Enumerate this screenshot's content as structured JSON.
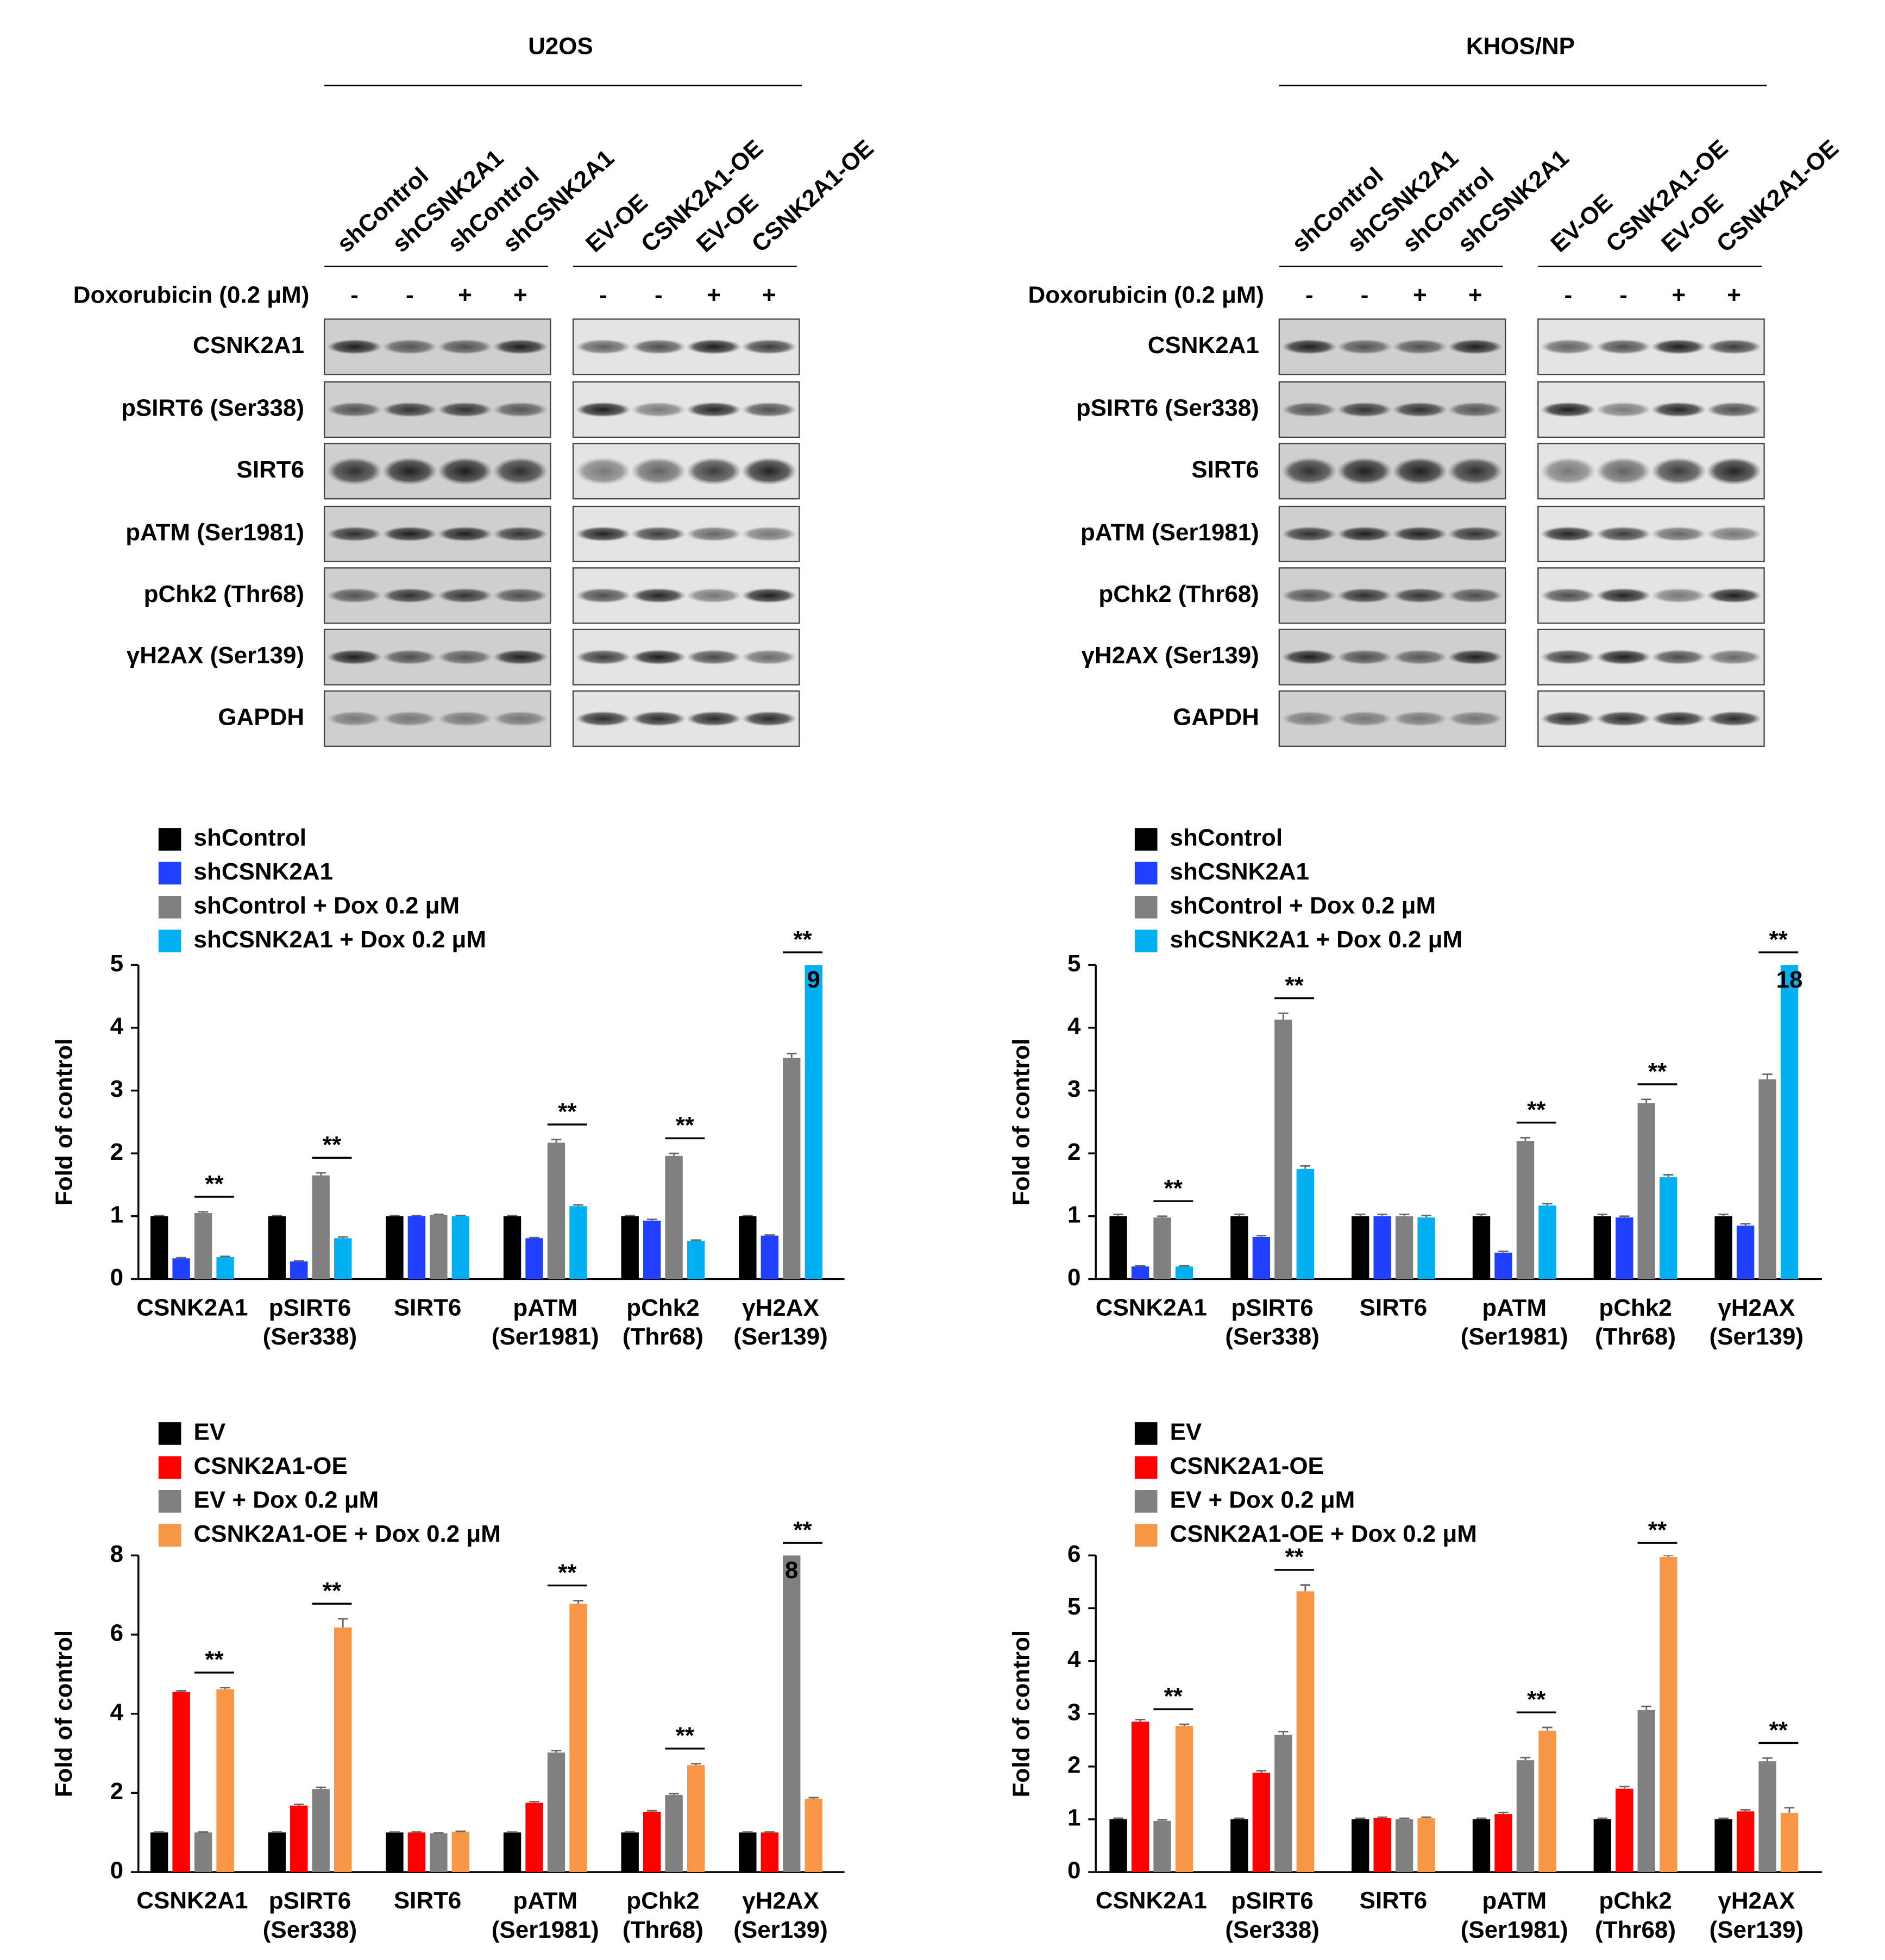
{
  "blots": [
    {
      "title": "U2OS",
      "lanes": [
        "shControl",
        "shCSNK2A1",
        "shControl",
        "shCSNK2A1",
        "EV-OE",
        "CSNK2A1-OE",
        "EV-OE",
        "CSNK2A1-OE"
      ],
      "treatment_label": "Doxorubicin (0.2 μM)",
      "treatment": [
        "-",
        "-",
        "+",
        "+",
        "-",
        "-",
        "+",
        "+"
      ],
      "rows": [
        "CSNK2A1",
        "pSIRT6 (Ser338)",
        "SIRT6",
        "pATM (Ser1981)",
        "pChk2 (Thr68)",
        "γH2AX (Ser139)",
        "GAPDH"
      ]
    },
    {
      "title": "KHOS/NP",
      "lanes": [
        "shControl",
        "shCSNK2A1",
        "shControl",
        "shCSNK2A1",
        "EV-OE",
        "CSNK2A1-OE",
        "EV-OE",
        "CSNK2A1-OE"
      ],
      "treatment_label": "Doxorubicin (0.2 μM)",
      "treatment": [
        "-",
        "-",
        "+",
        "+",
        "-",
        "-",
        "+",
        "+"
      ],
      "rows": [
        "CSNK2A1",
        "pSIRT6 (Ser338)",
        "SIRT6",
        "pATM (Ser1981)",
        "pChk2 (Thr68)",
        "γH2AX (Ser139)",
        "GAPDH"
      ]
    }
  ],
  "chart_data": [
    {
      "type": "bar",
      "ylabel": "Fold of control",
      "categories": [
        "CSNK2A1",
        "pSIRT6 (Ser338)",
        "SIRT6",
        "pATM (Ser1981)",
        "pChk2 (Thr68)",
        "γH2AX (Ser139)"
      ],
      "ylim": [
        0,
        5
      ],
      "yticks": [
        0,
        1,
        2,
        3,
        4,
        5
      ],
      "annotations": [
        "**",
        "**",
        null,
        "**",
        "**",
        "**"
      ],
      "series": [
        {
          "name": "shControl",
          "color": "#000000",
          "values": [
            1,
            1,
            1,
            1,
            1,
            1
          ],
          "errors": [
            0.01,
            0.01,
            0.01,
            0.01,
            0.01,
            0.01
          ]
        },
        {
          "name": "shCSNK2A1",
          "color": "#1f40ff",
          "values": [
            0.33,
            0.28,
            1.0,
            0.65,
            0.93,
            0.69
          ],
          "errors": [
            0.01,
            0.01,
            0.01,
            0.01,
            0.02,
            0.01
          ]
        },
        {
          "name": "shControl + Dox 0.2 μM",
          "color": "#808080",
          "values": [
            1.05,
            1.65,
            1.02,
            2.17,
            1.96,
            3.52
          ],
          "errors": [
            0.02,
            0.04,
            0.01,
            0.05,
            0.04,
            0.07
          ]
        },
        {
          "name": "shCSNK2A1 + Dox 0.2 μM",
          "color": "#00b0f0",
          "values": [
            0.35,
            0.65,
            1.0,
            1.16,
            0.61,
            9
          ],
          "errors": [
            0.01,
            0.02,
            0.01,
            0.02,
            0.01,
            0.1
          ],
          "value_labels": [
            null,
            null,
            null,
            null,
            null,
            "9"
          ]
        }
      ]
    },
    {
      "type": "bar",
      "ylabel": "Fold of control",
      "categories": [
        "CSNK2A1",
        "pSIRT6 (Ser338)",
        "SIRT6",
        "pATM (Ser1981)",
        "pChk2 (Thr68)",
        "γH2AX (Ser139)"
      ],
      "ylim": [
        0,
        5
      ],
      "yticks": [
        0,
        1,
        2,
        3,
        4,
        5
      ],
      "annotations": [
        "**",
        "**",
        null,
        "**",
        "**",
        "**"
      ],
      "series": [
        {
          "name": "shControl",
          "color": "#000000",
          "values": [
            1,
            1,
            1,
            1,
            1,
            1
          ],
          "errors": [
            0.03,
            0.03,
            0.03,
            0.03,
            0.03,
            0.03
          ]
        },
        {
          "name": "shCSNK2A1",
          "color": "#1f40ff",
          "values": [
            0.2,
            0.67,
            1.0,
            0.42,
            0.98,
            0.85
          ],
          "errors": [
            0.01,
            0.02,
            0.03,
            0.02,
            0.02,
            0.03
          ]
        },
        {
          "name": "shControl + Dox 0.2 μM",
          "color": "#808080",
          "values": [
            0.98,
            4.13,
            1.0,
            2.2,
            2.8,
            3.18
          ],
          "errors": [
            0.02,
            0.1,
            0.03,
            0.05,
            0.06,
            0.08
          ]
        },
        {
          "name": "shCSNK2A1 + Dox 0.2 μM",
          "color": "#00b0f0",
          "values": [
            0.2,
            1.75,
            0.98,
            1.17,
            1.62,
            18
          ],
          "errors": [
            0.01,
            0.05,
            0.03,
            0.03,
            0.04,
            0.1
          ],
          "value_labels": [
            null,
            null,
            null,
            null,
            null,
            "18"
          ]
        }
      ]
    },
    {
      "type": "bar",
      "ylabel": "Fold of control",
      "categories": [
        "CSNK2A1",
        "pSIRT6 (Ser338)",
        "SIRT6",
        "pATM (Ser1981)",
        "pChk2 (Thr68)",
        "γH2AX (Ser139)"
      ],
      "ylim": [
        0,
        8
      ],
      "yticks": [
        0,
        2,
        4,
        6,
        8
      ],
      "annotations": [
        "**",
        "**",
        null,
        "**",
        "**",
        "**"
      ],
      "series": [
        {
          "name": "EV",
          "color": "#000000",
          "values": [
            1,
            1,
            1,
            1,
            1,
            1
          ],
          "errors": [
            0.01,
            0.01,
            0.01,
            0.01,
            0.01,
            0.01
          ]
        },
        {
          "name": "CSNK2A1-OE",
          "color": "#ff0000",
          "values": [
            4.55,
            1.68,
            1.0,
            1.75,
            1.52,
            1.0
          ],
          "errors": [
            0.03,
            0.03,
            0.01,
            0.03,
            0.03,
            0.01
          ]
        },
        {
          "name": "EV + Dox 0.2 μM",
          "color": "#808080",
          "values": [
            1.0,
            2.1,
            0.98,
            3.02,
            1.95,
            8
          ],
          "errors": [
            0.01,
            0.04,
            0.01,
            0.05,
            0.03,
            0.1
          ],
          "value_labels": [
            null,
            null,
            null,
            null,
            null,
            "8"
          ]
        },
        {
          "name": "CSNK2A1-OE + Dox 0.2 μM",
          "color": "#f79646",
          "values": [
            4.62,
            6.18,
            1.02,
            6.78,
            2.7,
            1.85
          ],
          "errors": [
            0.04,
            0.22,
            0.01,
            0.08,
            0.04,
            0.03
          ]
        }
      ]
    },
    {
      "type": "bar",
      "ylabel": "Fold of control",
      "categories": [
        "CSNK2A1",
        "pSIRT6 (Ser338)",
        "SIRT6",
        "pATM (Ser1981)",
        "pChk2 (Thr68)",
        "γH2AX (Ser139)"
      ],
      "ylim": [
        0,
        6
      ],
      "yticks": [
        0,
        1,
        2,
        3,
        4,
        5,
        6
      ],
      "annotations": [
        "**",
        "**",
        null,
        "**",
        "**",
        "**"
      ],
      "series": [
        {
          "name": "EV",
          "color": "#000000",
          "values": [
            1,
            1,
            1,
            1,
            1,
            1
          ],
          "errors": [
            0.02,
            0.02,
            0.02,
            0.02,
            0.02,
            0.02
          ]
        },
        {
          "name": "CSNK2A1-OE",
          "color": "#ff0000",
          "values": [
            2.85,
            1.88,
            1.02,
            1.1,
            1.58,
            1.15
          ],
          "errors": [
            0.04,
            0.04,
            0.02,
            0.03,
            0.04,
            0.03
          ]
        },
        {
          "name": "EV + Dox 0.2 μM",
          "color": "#808080",
          "values": [
            0.97,
            2.6,
            1.0,
            2.12,
            3.07,
            2.1
          ],
          "errors": [
            0.02,
            0.06,
            0.02,
            0.05,
            0.07,
            0.06
          ]
        },
        {
          "name": "CSNK2A1-OE + Dox 0.2 μM",
          "color": "#f79646",
          "values": [
            2.77,
            5.32,
            1.02,
            2.68,
            5.97,
            1.12
          ],
          "errors": [
            0.03,
            0.12,
            0.02,
            0.06,
            0.03,
            0.1
          ]
        }
      ]
    }
  ]
}
